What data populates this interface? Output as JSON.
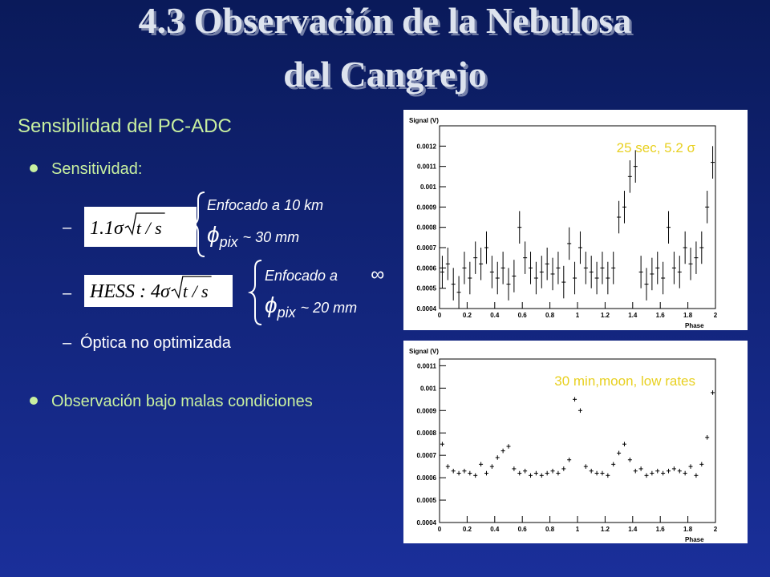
{
  "title_lines": [
    "4.3 Observación de la Nebulosa",
    "del Cangrejo"
  ],
  "subtitle": "Sensibilidad del PC-ADC",
  "bullets": [
    {
      "text": "Sensitividad:",
      "items": [
        {
          "formula": {
            "prefix": "1.1σ",
            "radicand": "t / s"
          },
          "brace": {
            "focus": "Enfocado a 10 km",
            "symbol": "ϕ",
            "subscript": "pix",
            "size": "~ 30 mm"
          }
        },
        {
          "formula": {
            "prefix": "HESS : 4σ",
            "radicand": "t / s"
          },
          "brace": {
            "focus": "Enfocado a",
            "focus_symbol": "∞",
            "symbol": "ϕ",
            "subscript": "pix",
            "size": "~ 20 mm"
          }
        },
        {
          "text": "Óptica no optimizada"
        }
      ]
    },
    {
      "text": "Observación bajo malas condiciones"
    }
  ],
  "chart_data": [
    {
      "type": "scatter",
      "ylabel": "Signal (V)",
      "xlabel": "Phase",
      "annotation": "25 sec,  5.2 σ",
      "xlim": [
        0,
        2
      ],
      "ylim": [
        0.0004,
        0.0013
      ],
      "xticks": [
        0,
        0.2,
        0.4,
        0.6,
        0.8,
        1,
        1.2,
        1.4,
        1.6,
        1.8,
        2
      ],
      "yticks": [
        0.0004,
        0.0005,
        0.0006,
        0.0007,
        0.0008,
        0.0009,
        0.001,
        0.0011,
        0.0012
      ],
      "error": 8e-05,
      "x": [
        0.02,
        0.06,
        0.1,
        0.14,
        0.18,
        0.22,
        0.26,
        0.3,
        0.34,
        0.38,
        0.42,
        0.46,
        0.5,
        0.54,
        0.58,
        0.62,
        0.66,
        0.7,
        0.74,
        0.78,
        0.82,
        0.86,
        0.9,
        0.94,
        0.98,
        1.02,
        1.06,
        1.1,
        1.14,
        1.18,
        1.22,
        1.26,
        1.3,
        1.34,
        1.38,
        1.42,
        1.46,
        1.5,
        1.54,
        1.58,
        1.62,
        1.66,
        1.7,
        1.74,
        1.78,
        1.82,
        1.86,
        1.9,
        1.94,
        1.98
      ],
      "values": [
        0.00058,
        0.00062,
        0.00052,
        0.00048,
        0.0006,
        0.00055,
        0.00065,
        0.00062,
        0.0007,
        0.00058,
        0.00055,
        0.0006,
        0.00052,
        0.00056,
        0.0008,
        0.00065,
        0.0006,
        0.00055,
        0.00058,
        0.00062,
        0.00057,
        0.0006,
        0.00053,
        0.00072,
        0.00055,
        0.0007,
        0.0006,
        0.00058,
        0.00055,
        0.0006,
        0.00055,
        0.0006,
        0.00085,
        0.0009,
        0.00105,
        0.0011,
        0.00058,
        0.00052,
        0.00057,
        0.0006,
        0.00055,
        0.0008,
        0.0006,
        0.00058,
        0.0007,
        0.00062,
        0.00065,
        0.0007,
        0.0009,
        0.00112
      ]
    },
    {
      "type": "scatter",
      "ylabel": "Signal (V)",
      "xlabel": "Phase",
      "annotation": "30 min,moon, low rates",
      "xlim": [
        0,
        2
      ],
      "ylim": [
        0.0004,
        0.00113
      ],
      "xticks": [
        0,
        0.2,
        0.4,
        0.6,
        0.8,
        1,
        1.2,
        1.4,
        1.6,
        1.8,
        2
      ],
      "yticks": [
        0.0004,
        0.0005,
        0.0006,
        0.0007,
        0.0008,
        0.0009,
        0.001,
        0.0011
      ],
      "error": 1e-05,
      "x": [
        0.02,
        0.06,
        0.1,
        0.14,
        0.18,
        0.22,
        0.26,
        0.3,
        0.34,
        0.38,
        0.42,
        0.46,
        0.5,
        0.54,
        0.58,
        0.62,
        0.66,
        0.7,
        0.74,
        0.78,
        0.82,
        0.86,
        0.9,
        0.94,
        0.98,
        1.02,
        1.06,
        1.1,
        1.14,
        1.18,
        1.22,
        1.26,
        1.3,
        1.34,
        1.38,
        1.42,
        1.46,
        1.5,
        1.54,
        1.58,
        1.62,
        1.66,
        1.7,
        1.74,
        1.78,
        1.82,
        1.86,
        1.9,
        1.94,
        1.98
      ],
      "values": [
        0.00075,
        0.00065,
        0.00063,
        0.00062,
        0.00063,
        0.00062,
        0.00061,
        0.00066,
        0.00062,
        0.00065,
        0.00069,
        0.00072,
        0.00074,
        0.00064,
        0.00062,
        0.00063,
        0.00061,
        0.00062,
        0.00061,
        0.00062,
        0.00063,
        0.00062,
        0.00064,
        0.00068,
        0.00095,
        0.0009,
        0.00065,
        0.00063,
        0.00062,
        0.00062,
        0.00061,
        0.00066,
        0.00071,
        0.00075,
        0.00068,
        0.00063,
        0.00064,
        0.00061,
        0.00062,
        0.00063,
        0.00062,
        0.00063,
        0.00064,
        0.00063,
        0.00062,
        0.00065,
        0.00061,
        0.00066,
        0.00078,
        0.00098
      ]
    }
  ]
}
